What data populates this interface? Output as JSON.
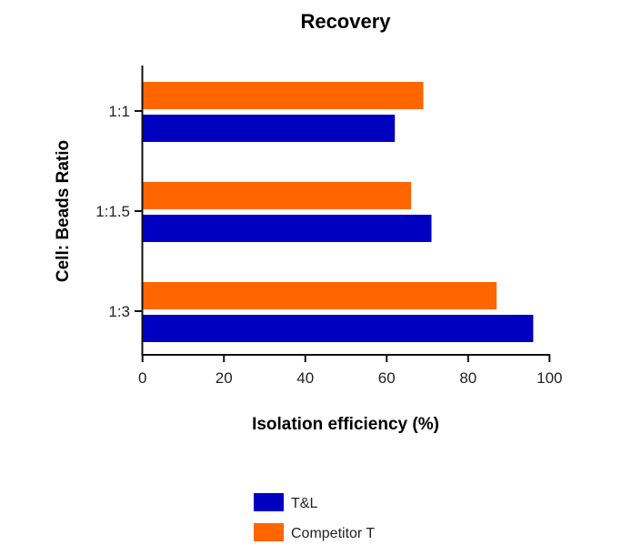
{
  "chart_data": {
    "type": "bar",
    "orientation": "horizontal",
    "title": "Recovery",
    "xlabel": "Isolation efficiency (%)",
    "ylabel": "Cell: Beads Ratio",
    "categories": [
      "1:1",
      "1:1.5",
      "1:3"
    ],
    "series": [
      {
        "name": "T&L",
        "color": "#0000c0",
        "values": [
          62,
          71,
          96
        ]
      },
      {
        "name": "Competitor T",
        "color": "#ff6600",
        "values": [
          69,
          66,
          87
        ]
      }
    ],
    "xlim": [
      0,
      100
    ],
    "xticks": [
      "0",
      "20",
      "40",
      "60",
      "80",
      "100"
    ],
    "grid": false,
    "legend_position": "bottom-center"
  }
}
